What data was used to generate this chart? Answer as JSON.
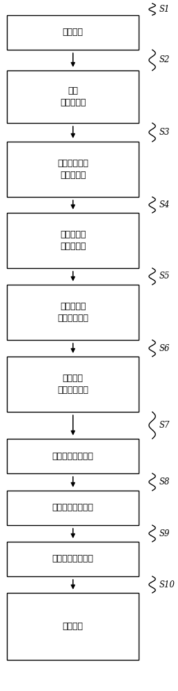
{
  "labels": [
    "获取图像",
    "得到\n图像直方图",
    "对图像根据光\n照亮度分区",
    "计算光照亮\n度区域占比",
    "初始化正常\n光照亮度权重",
    "计算其余\n光照亮度权重",
    "计算光照亮度参数",
    "确认整体亮度状态",
    "确定曝光调整方式",
    "调整曝光"
  ],
  "step_names": [
    "S1",
    "S2",
    "S3",
    "S4",
    "S5",
    "S6",
    "S7",
    "S8",
    "S9",
    "S10"
  ],
  "bg_color": "#ffffff",
  "box_edge_color": "#000000",
  "box_face_color": "#ffffff",
  "text_color": "#000000",
  "arrow_color": "#000000",
  "wavy_color": "#000000"
}
